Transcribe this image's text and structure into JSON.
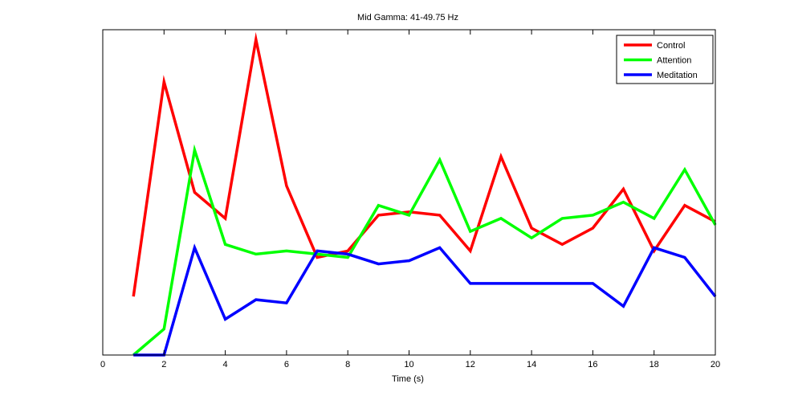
{
  "chart_data": {
    "type": "line",
    "title": "Mid Gamma: 41-49.75 Hz",
    "xlabel": "Time (s)",
    "ylabel": "",
    "xlim": [
      0,
      20
    ],
    "ylim": [
      0,
      1
    ],
    "x_ticks": [
      0,
      2,
      4,
      6,
      8,
      10,
      12,
      14,
      16,
      18,
      20
    ],
    "y_tick_labels_visible": false,
    "grid": false,
    "legend_position": "top-right",
    "x": [
      1,
      2,
      3,
      4,
      5,
      6,
      7,
      8,
      9,
      10,
      11,
      12,
      13,
      14,
      15,
      16,
      17,
      18,
      19,
      20
    ],
    "series": [
      {
        "name": "Control",
        "color": "#ff0000",
        "values": [
          0.18,
          0.84,
          0.5,
          0.42,
          0.97,
          0.52,
          0.3,
          0.32,
          0.43,
          0.44,
          0.43,
          0.32,
          0.61,
          0.39,
          0.34,
          0.39,
          0.51,
          0.32,
          0.46,
          0.41
        ]
      },
      {
        "name": "Attention",
        "color": "#00ff00",
        "values": [
          0.0,
          0.08,
          0.63,
          0.34,
          0.31,
          0.32,
          0.31,
          0.3,
          0.46,
          0.43,
          0.6,
          0.38,
          0.42,
          0.36,
          0.42,
          0.43,
          0.47,
          0.42,
          0.57,
          0.4
        ]
      },
      {
        "name": "Meditation",
        "color": "#0000ff",
        "values": [
          0.0,
          0.0,
          0.33,
          0.11,
          0.17,
          0.16,
          0.32,
          0.31,
          0.28,
          0.29,
          0.33,
          0.22,
          0.22,
          0.22,
          0.22,
          0.22,
          0.15,
          0.33,
          0.3,
          0.18
        ]
      }
    ]
  }
}
